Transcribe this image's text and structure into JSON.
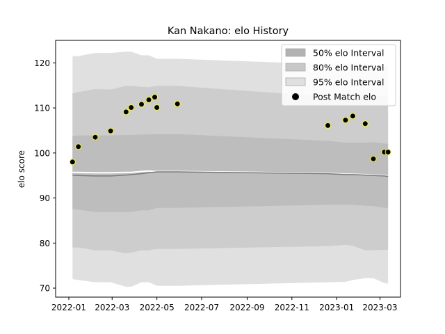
{
  "chart_data": {
    "type": "scatter",
    "title": "Kan Nakano: elo History",
    "xlabel": "",
    "ylabel": "elo score",
    "x_axis_type": "date",
    "xlim": [
      "2021-12-14",
      "2023-03-29"
    ],
    "ylim": [
      68.0,
      125.0
    ],
    "x_ticks": [
      "2022-01",
      "2022-03",
      "2022-05",
      "2022-07",
      "2022-09",
      "2022-11",
      "2023-01",
      "2023-03"
    ],
    "y_ticks": [
      70,
      80,
      90,
      100,
      110,
      120
    ],
    "grid": false,
    "legend_position": "top-right",
    "legend": [
      {
        "label": "50% elo Interval",
        "color": "#b2b2b2",
        "kind": "patch"
      },
      {
        "label": "80% elo Interval",
        "color": "#c8c8c8",
        "kind": "patch"
      },
      {
        "label": "95% elo Interval",
        "color": "#e0e0e0",
        "kind": "patch"
      },
      {
        "label": "Post Match elo",
        "color": "#000000",
        "kind": "marker"
      }
    ],
    "band_dates": [
      "2022-01-06",
      "2022-01-14",
      "2022-02-06",
      "2022-02-27",
      "2022-03-20",
      "2022-03-27",
      "2022-04-10",
      "2022-04-20",
      "2022-05-01",
      "2022-05-29",
      "2022-12-20",
      "2023-01-13",
      "2023-01-23",
      "2023-02-09",
      "2023-02-20",
      "2023-03-07",
      "2023-03-12"
    ],
    "bands": {
      "p95": {
        "upper": [
          121.5,
          121.5,
          122.2,
          122.2,
          122.5,
          122.5,
          121.7,
          121.7,
          120.9,
          120.9,
          119.7,
          119.9,
          120.0,
          119.8,
          119.5,
          119.3,
          119.2
        ],
        "lower": [
          72.0,
          71.8,
          71.3,
          71.3,
          70.3,
          70.3,
          71.3,
          71.3,
          70.5,
          70.5,
          71.3,
          71.4,
          71.8,
          72.2,
          72.2,
          71.1,
          71.0
        ]
      },
      "p80": {
        "upper": [
          113.2,
          113.5,
          114.2,
          114.1,
          114.9,
          114.9,
          114.7,
          114.6,
          114.9,
          114.9,
          112.5,
          112.3,
          112.3,
          112.4,
          112.6,
          112.7,
          112.8
        ],
        "lower": [
          79.0,
          79.0,
          78.4,
          78.4,
          77.7,
          77.9,
          78.4,
          78.4,
          78.7,
          78.7,
          79.3,
          79.6,
          79.4,
          78.4,
          78.4,
          78.5,
          78.5
        ]
      },
      "p50": {
        "upper": [
          103.8,
          103.9,
          103.9,
          103.9,
          104.0,
          104.0,
          104.1,
          104.1,
          104.2,
          104.2,
          102.7,
          102.3,
          102.3,
          102.3,
          102.4,
          102.1,
          102.0
        ],
        "lower": [
          87.6,
          87.4,
          86.9,
          86.9,
          86.9,
          86.9,
          87.3,
          87.3,
          87.8,
          87.8,
          88.5,
          88.5,
          88.5,
          88.3,
          88.2,
          87.8,
          87.8
        ]
      }
    },
    "median_line": [
      95.1,
      95.0,
      94.9,
      94.9,
      95.1,
      95.2,
      95.4,
      95.6,
      95.8,
      95.8,
      95.4,
      95.2,
      95.2,
      95.1,
      95.0,
      94.9,
      94.8
    ],
    "mean_line": [
      95.7,
      95.7,
      95.6,
      95.6,
      95.7,
      95.7,
      95.9,
      96.0,
      95.9,
      95.9,
      95.5,
      95.3,
      95.3,
      95.2,
      95.1,
      95.0,
      94.9
    ],
    "series": [
      {
        "name": "Post Match elo",
        "x": [
          "2022-01-06",
          "2022-01-14",
          "2022-02-06",
          "2022-02-27",
          "2022-03-20",
          "2022-03-27",
          "2022-04-10",
          "2022-04-20",
          "2022-04-28",
          "2022-05-01",
          "2022-05-29",
          "2022-12-20",
          "2023-01-13",
          "2023-01-23",
          "2023-02-09",
          "2023-02-20",
          "2023-03-07",
          "2023-03-12"
        ],
        "y": [
          98.0,
          101.4,
          103.5,
          104.9,
          109.1,
          110.1,
          110.8,
          111.8,
          112.4,
          110.1,
          110.9,
          106.1,
          107.3,
          108.2,
          106.5,
          98.7,
          100.2,
          100.2
        ],
        "marker_fill": "#000000",
        "marker_edge": "#ffff00"
      }
    ],
    "colors": {
      "p95_fill": "#e0e0e0",
      "p80_fill": "#cdcdcd",
      "p50_fill": "#bdbdbd",
      "median_line": "#7a7a7a",
      "mean_line": "#ffffff",
      "axis": "#000000"
    }
  }
}
